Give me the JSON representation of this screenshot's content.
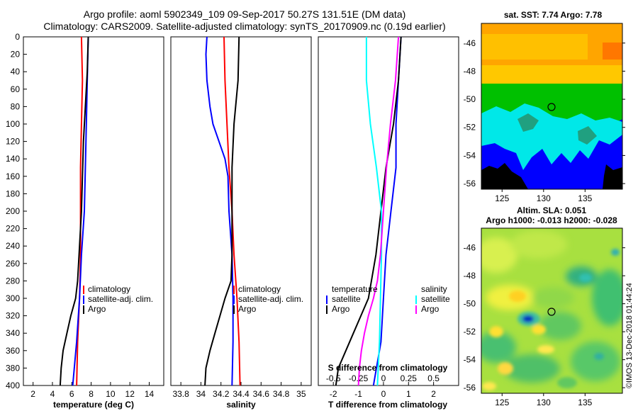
{
  "header": {
    "title_line1": "Argo profile: aoml 5902349_109 09-Sep-2017 50.27S 131.51E (DM data)",
    "title_line2": "Climatology: CARS2009. Satellite-adjusted climatology: synTS_20170909.nc (0.19d earlier)"
  },
  "watermark": "©IMOS 13-Dec-2018 01:44:24",
  "colors": {
    "climatology": "#ff0000",
    "satellite": "#0000ff",
    "argo": "#000000",
    "satellite_s": "#00ffff",
    "argo_s": "#ff00ff"
  },
  "chart_data": [
    {
      "type": "line",
      "id": "temperature",
      "xlabel": "temperature (deg C)",
      "xlim": [
        1,
        15.5
      ],
      "ylim": [
        0,
        400
      ],
      "xticks": [
        "2",
        "4",
        "6",
        "8",
        "10",
        "12",
        "14"
      ],
      "yticks": [
        "0",
        "20",
        "40",
        "60",
        "80",
        "100",
        "120",
        "140",
        "160",
        "180",
        "200",
        "220",
        "240",
        "260",
        "280",
        "300",
        "320",
        "340",
        "360",
        "380",
        "400"
      ],
      "legend": [
        "climatology",
        "satellite-adj. clim.",
        "Argo"
      ],
      "series": [
        {
          "name": "climatology",
          "depth": [
            0,
            50,
            100,
            150,
            200,
            250,
            300,
            350,
            400
          ],
          "values": [
            7.0,
            7.1,
            7.0,
            6.9,
            6.9,
            6.9,
            6.8,
            6.6,
            6.5
          ]
        },
        {
          "name": "satellite-adj. clim.",
          "depth": [
            0,
            50,
            100,
            150,
            200,
            250,
            300,
            350,
            400
          ],
          "values": [
            7.7,
            7.6,
            7.5,
            7.4,
            7.3,
            7.0,
            6.8,
            6.5,
            6.1
          ]
        },
        {
          "name": "Argo",
          "depth": [
            0,
            40,
            80,
            120,
            160,
            200,
            240,
            280,
            300,
            320,
            340,
            360,
            380,
            400
          ],
          "values": [
            7.7,
            7.6,
            7.4,
            7.2,
            7.1,
            7.0,
            6.8,
            6.6,
            6.4,
            5.9,
            5.5,
            5.1,
            4.9,
            4.8
          ]
        }
      ]
    },
    {
      "type": "line",
      "id": "salinity",
      "xlabel": "salinity",
      "xlim": [
        33.7,
        35.1
      ],
      "ylim": [
        0,
        400
      ],
      "xticks": [
        "33.8",
        "34",
        "34.2",
        "34.4",
        "34.6",
        "34.8",
        "35"
      ],
      "legend": [
        "climatology",
        "satellite-adj. clim.",
        "Argo"
      ],
      "series": [
        {
          "name": "climatology",
          "depth": [
            0,
            50,
            100,
            150,
            200,
            250,
            300,
            350,
            400
          ],
          "values": [
            34.23,
            34.24,
            34.26,
            34.28,
            34.31,
            34.33,
            34.36,
            34.38,
            34.39
          ]
        },
        {
          "name": "satellite-adj. clim.",
          "depth": [
            0,
            20,
            50,
            80,
            100,
            120,
            140,
            160,
            200,
            250,
            300,
            350,
            400
          ],
          "values": [
            34.06,
            34.05,
            34.06,
            34.09,
            34.12,
            34.18,
            34.24,
            34.27,
            34.28,
            34.31,
            34.32,
            34.32,
            34.31
          ]
        },
        {
          "name": "Argo",
          "depth": [
            0,
            50,
            100,
            150,
            200,
            250,
            280,
            300,
            320,
            340,
            360,
            380,
            400
          ],
          "values": [
            34.38,
            34.37,
            34.33,
            34.31,
            34.31,
            34.31,
            34.3,
            34.24,
            34.19,
            34.14,
            34.09,
            34.05,
            34.04
          ]
        }
      ]
    },
    {
      "type": "line",
      "id": "differences",
      "xlabel": "T difference from climatology",
      "xlabel_top": "S difference from climatology",
      "xlim": [
        -2.6,
        3.0
      ],
      "ylim": [
        0,
        400
      ],
      "xticks": [
        "-2",
        "-1",
        "0",
        "1",
        "2"
      ],
      "xticks_s": [
        "-0.5",
        "-0.25",
        "0",
        "0.25",
        "0.5"
      ],
      "legend_left": {
        "title": "temperature",
        "items": [
          "satellite",
          "Argo"
        ]
      },
      "legend_right": {
        "title": "salinity",
        "items": [
          "satellite",
          "Argo"
        ]
      },
      "series": [
        {
          "name": "T satellite",
          "depth": [
            0,
            50,
            100,
            150,
            200,
            250,
            300,
            350,
            400
          ],
          "values": [
            0.7,
            0.6,
            0.5,
            0.5,
            0.3,
            0.1,
            0.0,
            -0.1,
            -0.4
          ]
        },
        {
          "name": "T Argo",
          "depth": [
            0,
            50,
            100,
            150,
            200,
            250,
            300,
            320,
            340,
            360,
            380,
            400
          ],
          "values": [
            0.7,
            0.6,
            0.4,
            0.1,
            -0.1,
            -0.3,
            -0.6,
            -0.9,
            -1.2,
            -1.5,
            -1.8,
            -1.9
          ]
        },
        {
          "name": "S satellite",
          "depth": [
            0,
            50,
            100,
            150,
            200,
            250,
            300,
            350,
            400
          ],
          "values": [
            -0.17,
            -0.17,
            -0.13,
            -0.07,
            -0.02,
            -0.02,
            -0.03,
            -0.04,
            -0.06
          ]
        },
        {
          "name": "S Argo",
          "depth": [
            0,
            50,
            100,
            150,
            200,
            250,
            280,
            300,
            320,
            340,
            360,
            380,
            400
          ],
          "values": [
            0.15,
            0.12,
            0.07,
            0.03,
            0.0,
            -0.03,
            -0.06,
            -0.1,
            -0.15,
            -0.19,
            -0.22,
            -0.24,
            -0.25
          ]
        }
      ]
    }
  ],
  "maps": {
    "sst": {
      "title": "sat. SST: 7.74 Argo: 7.78",
      "xticks": [
        "125",
        "130",
        "135"
      ],
      "yticks": [
        "-46",
        "-48",
        "-50",
        "-52",
        "-54",
        "-56"
      ]
    },
    "sla": {
      "title1": "Altim. SLA: 0.051",
      "title2": "Argo h1000: -0.013 h2000: -0.028",
      "xticks": [
        "125",
        "130",
        "135"
      ],
      "yticks": [
        "-46",
        "-48",
        "-50",
        "-52",
        "-54",
        "-56"
      ]
    }
  }
}
